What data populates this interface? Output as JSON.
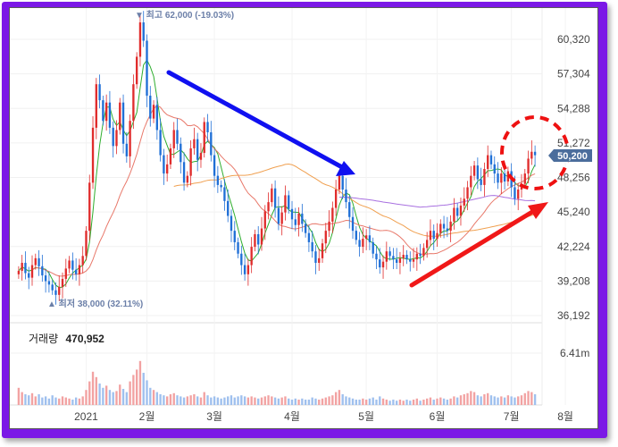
{
  "chart_data": {
    "type": "candlestick",
    "title": "",
    "price_axis": {
      "ticks": [
        60320,
        57304,
        54288,
        51272,
        48256,
        45240,
        42224,
        39208,
        36192
      ],
      "ylim": [
        36192,
        61600
      ]
    },
    "x_axis": {
      "ticks": [
        "2021",
        "2월",
        "3월",
        "4월",
        "5월",
        "6월",
        "7월",
        "8월"
      ]
    },
    "current_price_label": "50,200",
    "high_marker": {
      "text": "▼ 최고 62,000 (-19.03%)",
      "value": 62000
    },
    "low_marker": {
      "text": "▲ 최저 38,000 (32.11%)",
      "value": 38000
    },
    "volume_panel": {
      "label": "거래량",
      "value": "470,952",
      "axis_tick": "6.41m"
    },
    "colors": {
      "up": "#e02c2c",
      "down": "#1f6fd6",
      "ma5": "#2fae2f",
      "ma20": "#e8786a",
      "ma60": "#f0a050",
      "ma120": "#a870e0",
      "price_badge": "#4b6d9c",
      "frame": "#7b18e6"
    },
    "series_close": [
      40100,
      40800,
      39900,
      39500,
      40600,
      41200,
      40500,
      39700,
      39200,
      38900,
      38400,
      38000,
      38700,
      39400,
      40300,
      41000,
      40200,
      39800,
      40600,
      41400,
      43600,
      47800,
      52600,
      56400,
      55000,
      53200,
      54800,
      52600,
      51000,
      52400,
      54800,
      51200,
      50100,
      53200,
      56400,
      58800,
      61800,
      60200,
      55400,
      53400,
      54600,
      52400,
      50200,
      48600,
      49400,
      50800,
      52400,
      51200,
      49600,
      47800,
      48400,
      50800,
      51600,
      49800,
      50400,
      53100,
      52200,
      50200,
      48400,
      47600,
      47400,
      46200,
      44900,
      43600,
      42600,
      41600,
      40600,
      39800,
      40600,
      42200,
      43300,
      42400,
      43800,
      45300,
      46100,
      47300,
      45600,
      44200,
      45200,
      46700,
      45500,
      44600,
      44100,
      45100,
      44200,
      43400,
      42600,
      41800,
      40800,
      41200,
      42500,
      43600,
      44400,
      45600,
      47200,
      48400,
      47200,
      46100,
      44800,
      43600,
      42800,
      42200,
      42900,
      43200,
      42600,
      41600,
      41100,
      40400,
      40900,
      41800,
      41400,
      41100,
      40800,
      41200,
      41500,
      41100,
      40900,
      41100,
      41600,
      41400,
      42100,
      42800,
      43600,
      42900,
      43400,
      44200,
      43800,
      43600,
      44400,
      45600,
      44900,
      45800,
      46400,
      47400,
      48400,
      49300,
      48100,
      47600,
      49000,
      50200,
      49400,
      48600,
      47800,
      48600,
      47900,
      48800,
      47400,
      46400,
      47200,
      47700,
      48600,
      49900,
      50500,
      50200
    ],
    "series_vol": [
      1.6,
      1.2,
      1.0,
      0.9,
      1.1,
      0.8,
      1.0,
      0.7,
      0.8,
      0.6,
      0.9,
      0.7,
      0.6,
      0.8,
      0.7,
      0.6,
      0.5,
      0.7,
      0.6,
      0.8,
      1.4,
      2.2,
      3.1,
      2.6,
      2.0,
      1.6,
      1.8,
      1.4,
      1.2,
      1.3,
      1.9,
      1.5,
      1.2,
      2.2,
      2.8,
      3.3,
      4.1,
      3.0,
      2.3,
      1.6,
      1.4,
      1.2,
      1.0,
      0.9,
      0.8,
      1.0,
      1.1,
      0.9,
      0.8,
      0.7,
      0.8,
      0.9,
      1.0,
      0.8,
      0.7,
      1.2,
      0.9,
      0.7,
      0.8,
      0.7,
      0.6,
      0.7,
      0.8,
      0.9,
      0.7,
      0.8,
      0.9,
      0.8,
      0.7,
      0.8,
      0.7,
      0.6,
      0.7,
      0.8,
      0.9,
      0.8,
      0.7,
      0.6,
      0.7,
      0.8,
      0.6,
      0.5,
      0.6,
      0.5,
      0.6,
      0.5,
      0.5,
      0.7,
      0.6,
      0.5,
      0.6,
      0.7,
      0.8,
      0.9,
      1.2,
      1.4,
      1.0,
      0.8,
      0.7,
      0.6,
      0.5,
      0.5,
      0.6,
      0.5,
      0.6,
      0.7,
      0.5,
      0.8,
      0.6,
      0.5,
      0.4,
      0.5,
      0.4,
      0.5,
      0.4,
      0.5,
      0.4,
      0.5,
      0.6,
      0.4,
      0.5,
      0.6,
      0.7,
      0.5,
      0.6,
      0.7,
      0.6,
      0.5,
      0.6,
      0.8,
      0.7,
      0.9,
      1.0,
      1.1,
      1.3,
      1.2,
      0.9,
      0.8,
      1.0,
      1.1,
      0.9,
      0.8,
      0.7,
      0.8,
      0.7,
      0.9,
      0.8,
      0.7,
      0.8,
      0.9,
      1.1,
      1.3,
      1.2,
      1.0
    ]
  }
}
